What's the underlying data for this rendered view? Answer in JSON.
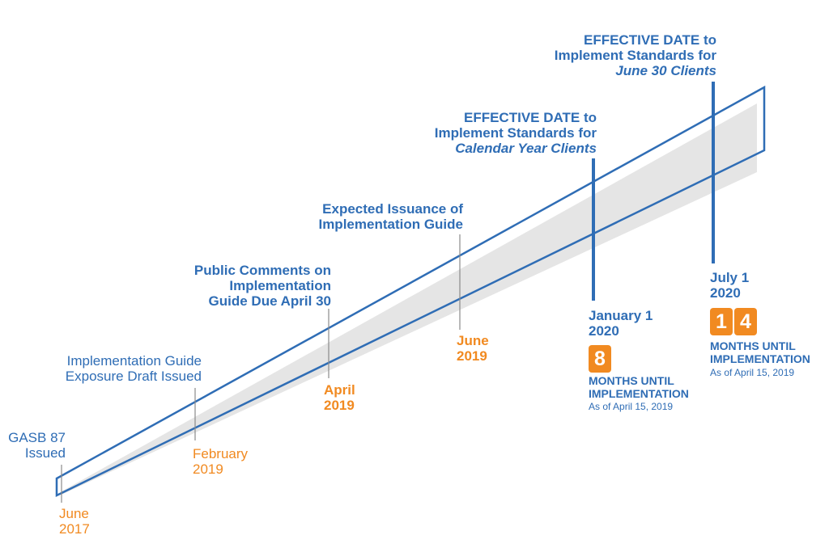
{
  "colors": {
    "blue": "#2f6db5",
    "orange": "#f18a21",
    "band": "#e5e5e5"
  },
  "milestones": [
    {
      "event": "GASB 87\nIssued",
      "date": "June\n2017"
    },
    {
      "event": "Implementation Guide\nExposure Draft Issued",
      "date": "February\n2019"
    },
    {
      "event": "Public Comments on\nImplementation\nGuide Due April 30",
      "date": "April\n2019"
    },
    {
      "event": "Expected Issuance of\nImplementation Guide",
      "date": "June\n2019"
    },
    {
      "event_line1": "EFFECTIVE DATE to",
      "event_line2": "Implement Standards for",
      "event_line3": "Calendar Year Clients",
      "date": "January 1\n2020",
      "months": "8",
      "months_label": "MONTHS UNTIL\nIMPLEMENTATION",
      "as_of": "As of April 15, 2019"
    },
    {
      "event_line1": "EFFECTIVE DATE to",
      "event_line2": "Implement Standards for",
      "event_line3": "June 30 Clients",
      "date": "July 1\n2020",
      "months_d1": "1",
      "months_d2": "4",
      "months_label": "MONTHS UNTIL\nIMPLEMENTATION",
      "as_of": "As of April 15, 2019"
    }
  ]
}
